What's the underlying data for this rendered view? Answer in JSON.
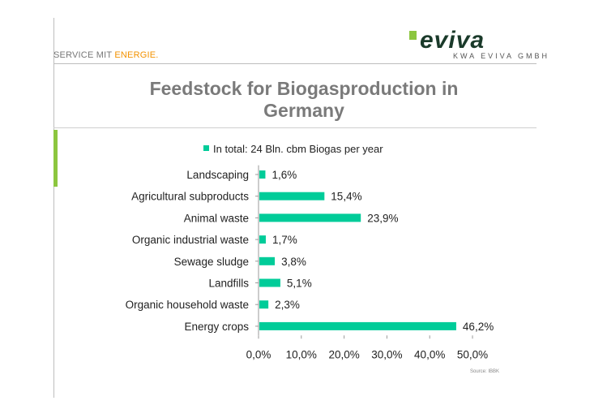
{
  "header": {
    "tagline_prefix": "SERVICE MIT",
    "tagline_accent": "ENERGIE.",
    "logo_text": "eviva",
    "logo_subtitle": "KWA EVIVA GMBH",
    "accent_color": "#f39200",
    "brand_green": "#8cc63f",
    "brand_dark": "#1a3a2a"
  },
  "chart_data": {
    "type": "bar",
    "orientation": "horizontal",
    "title": "Feedstock for Biogasproduction in Germany",
    "legend": "In total: 24 Bln. cbm Biogas per year",
    "legend_placement": "top",
    "bar_color": "#00cc99",
    "categories": [
      "Landscaping",
      "Agricultural subproducts",
      "Animal waste",
      "Organic industrial waste",
      "Sewage sludge",
      "Landfills",
      "Organic household waste",
      "Energy crops"
    ],
    "values": [
      1.6,
      15.4,
      23.9,
      1.7,
      3.8,
      5.1,
      2.3,
      46.2
    ],
    "value_labels": [
      "1,6%",
      "15,4%",
      "23,9%",
      "1,7%",
      "3,8%",
      "5,1%",
      "2,3%",
      "46,2%"
    ],
    "xlim": [
      0,
      50
    ],
    "x_ticks": [
      0,
      10,
      20,
      30,
      40,
      50
    ],
    "x_tick_labels": [
      "0,0%",
      "10,0%",
      "20,0%",
      "30,0%",
      "40,0%",
      "50,0%"
    ],
    "grid": false,
    "source": "Source: IBBK"
  }
}
